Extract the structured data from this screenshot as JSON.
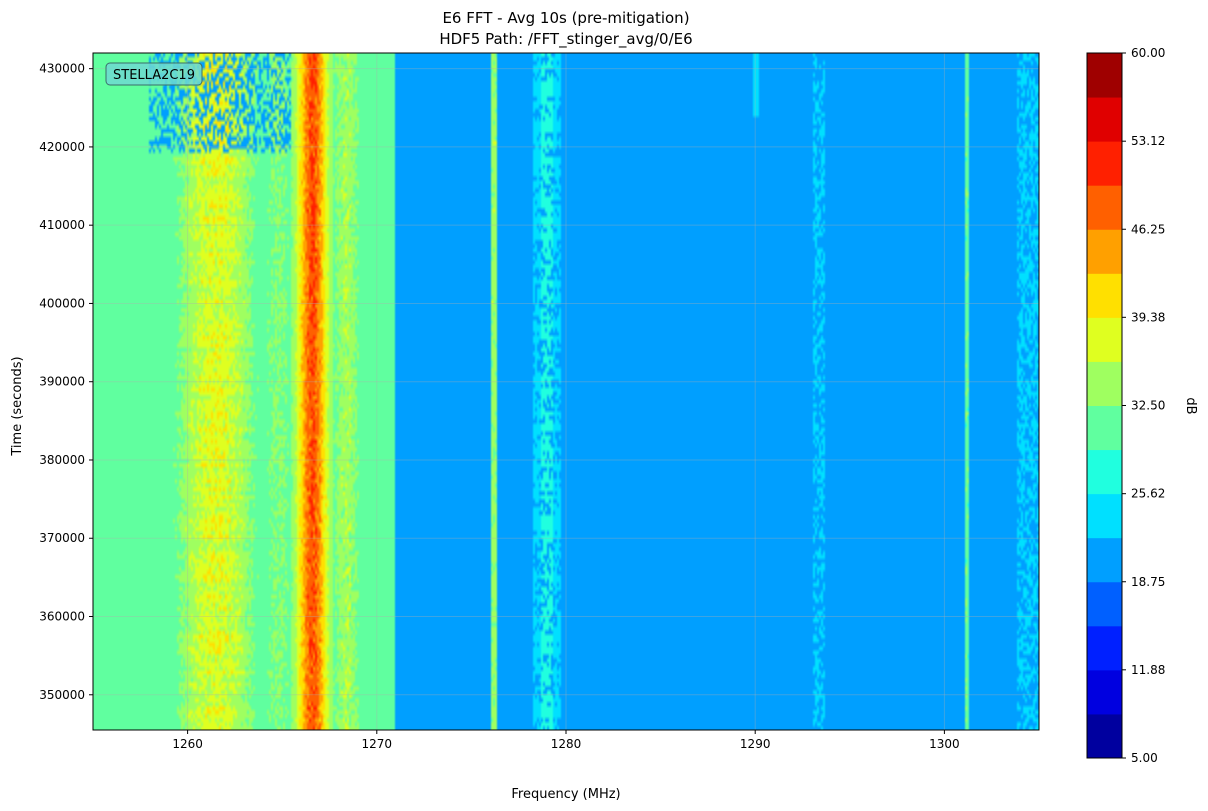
{
  "chart_data": {
    "type": "heatmap",
    "title": "E6 FFT - Avg 10s (pre-mitigation)",
    "subtitle": "HDF5 Path: /FFT_stinger_avg/0/E6",
    "xlabel": "Frequency (MHz)",
    "ylabel": "Time (seconds)",
    "xlim": [
      1255,
      1305
    ],
    "ylim": [
      345500,
      432000
    ],
    "x_ticks": [
      1260,
      1270,
      1280,
      1290,
      1300
    ],
    "y_ticks": [
      350000,
      360000,
      370000,
      380000,
      390000,
      400000,
      410000,
      420000,
      430000
    ],
    "grid": true,
    "annotation": "STELLA2C19",
    "colorbar": {
      "label": "dB",
      "min": 5.0,
      "max": 60.0,
      "levels": 16,
      "ticks": [
        "5.00",
        "11.88",
        "18.75",
        "25.62",
        "32.50",
        "39.38",
        "46.25",
        "53.12",
        "60.00"
      ],
      "colormap": "jet",
      "colors": [
        "#00009f",
        "#0000e0",
        "#0020ff",
        "#0060ff",
        "#009fff",
        "#00e0ff",
        "#20ffdf",
        "#60ff9f",
        "#9fff60",
        "#dfff20",
        "#ffe000",
        "#ffa000",
        "#ff6000",
        "#ff2000",
        "#e00000",
        "#9f0000"
      ]
    },
    "background_level_db": 21.5,
    "features": [
      {
        "name": "broadband region",
        "x_range": [
          1255,
          1271
        ],
        "level_db": 25.5
      },
      {
        "name": "strong band",
        "x_center": 1266.6,
        "width_mhz": 1.6,
        "level_db": 48
      },
      {
        "name": "band sidelobe",
        "x_center": 1261.5,
        "width_mhz": 3.5,
        "level_db": 37
      },
      {
        "name": "narrowband line",
        "x_center": 1276.2,
        "level_db": 32
      },
      {
        "name": "narrowband line",
        "x_center": 1301.2,
        "level_db": 30
      },
      {
        "name": "intermittent band",
        "x_center": 1279,
        "width_mhz": 1.5,
        "level_db": 25
      },
      {
        "name": "faint line",
        "x_center": 1293.4,
        "level_db": 24
      },
      {
        "name": "faint line",
        "x_center": 1290.0,
        "level_db": 23
      },
      {
        "name": "edge noise",
        "x_range": [
          1303.8,
          1305
        ],
        "level_db": 25
      }
    ]
  }
}
